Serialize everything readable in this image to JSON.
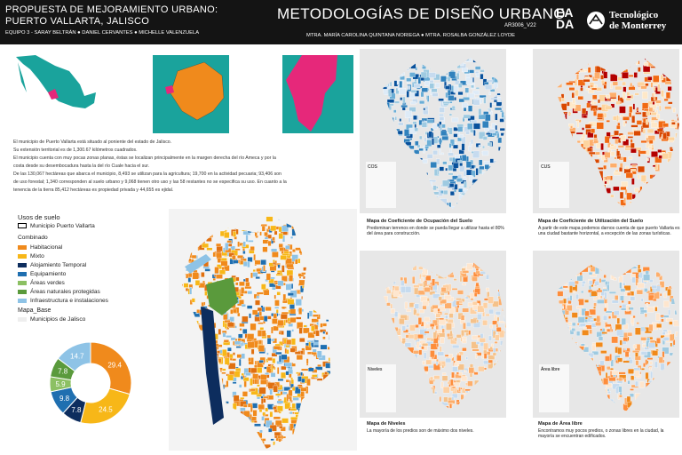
{
  "header": {
    "title_line1": "PROPUESTA DE MEJORAMIENTO URBANO:",
    "title_line2": "PUERTO VALLARTA, JALISCO",
    "team": "EQUIPO 3 - SARAY BELTRÁN ● DANIEL CERVANTES ● MICHELLE VALENZUELA",
    "course": "METODOLOGÍAS DE DISEÑO URBANO",
    "code": "AR3006_V22",
    "teachers": "MTRA. MARÍA CAROLINA QUINTANA NORIEGA ● MTRA. ROSALBA GONZÁLEZ LOYDE",
    "logo_eada_top": "EA",
    "logo_eada_bottom": "DA",
    "logo_tec_line1": "Tecnológico",
    "logo_tec_line2": "de Monterrey"
  },
  "intro": [
    "El municipio de Puerto Vallarta está situado al poniente del estado de Jalisco.",
    "Su extensión territorial es de 1,300.67 kilómetros cuadrados.",
    "El municipio cuenta con muy pocas zonas planas, éstas se localizan principalmente en la margen derecha del río Ameca y por la",
    "costa desde su desembocadura hasta la del río Cuale hacia el sur.",
    "De las 130,067 hectáreas que abarca el municipio, 8,493 se utilizan para la agricultura; 19,700 en la actividad pecuaria; 93,406 son",
    "de uso forestal; 1,340 corresponden al suelo urbano y 9,068 tienen otro uso y las 58 restantes no se especifica su uso. En cuanto a la",
    "tenencia de la tierra 85,412 hectáreas es propiedad privada y 44,655 es ejidal."
  ],
  "legend": {
    "title": "Usos de suelo",
    "boundary": "Municipio Puerto Vallarta",
    "group": "Combinado",
    "base_title": "Mapa_Base",
    "base_item": "Municipios de Jalisco"
  },
  "chart_data": {
    "type": "donut",
    "categories": [
      "Habitacional",
      "Mixto",
      "Alojamiento Temporal",
      "Equipamiento",
      "Áreas verdes",
      "Áreas naturales protegidas",
      "Infraestructura e instalaciones"
    ],
    "values": [
      29.4,
      24.5,
      7.8,
      9.8,
      5.9,
      7.8,
      14.7
    ],
    "colors": [
      "#f08a1c",
      "#f7b718",
      "#0d2d5e",
      "#1f6fb0",
      "#8cc063",
      "#5a9a3c",
      "#8ec3e6"
    ]
  },
  "maps": [
    {
      "legend": "COS",
      "title": "Mapa de Coeficiente de Ocupación del Suelo",
      "text": "Predominan terrenos en donde se pueda llegar a utilizar hasta el 80% del área para construcción."
    },
    {
      "legend": "CUS",
      "title": "Mapa de Coeficiente de Utilización del Suelo",
      "text": "A partir de este mapa podemos darnos cuenta de que puerto Vallarta es una ciudad bastante horizontal, a excepción de las zonas turísticas."
    },
    {
      "legend": "Niveles",
      "title": "Mapa de Niveles",
      "text": "La mayoría de los predios son de máximo dos niveles."
    },
    {
      "legend": "Área libre",
      "title": "Mapa de Área libre",
      "text": "Encontramos muy pocos predios, o zonas libres en la ciudad, la mayoría se encuentran edificados."
    }
  ]
}
